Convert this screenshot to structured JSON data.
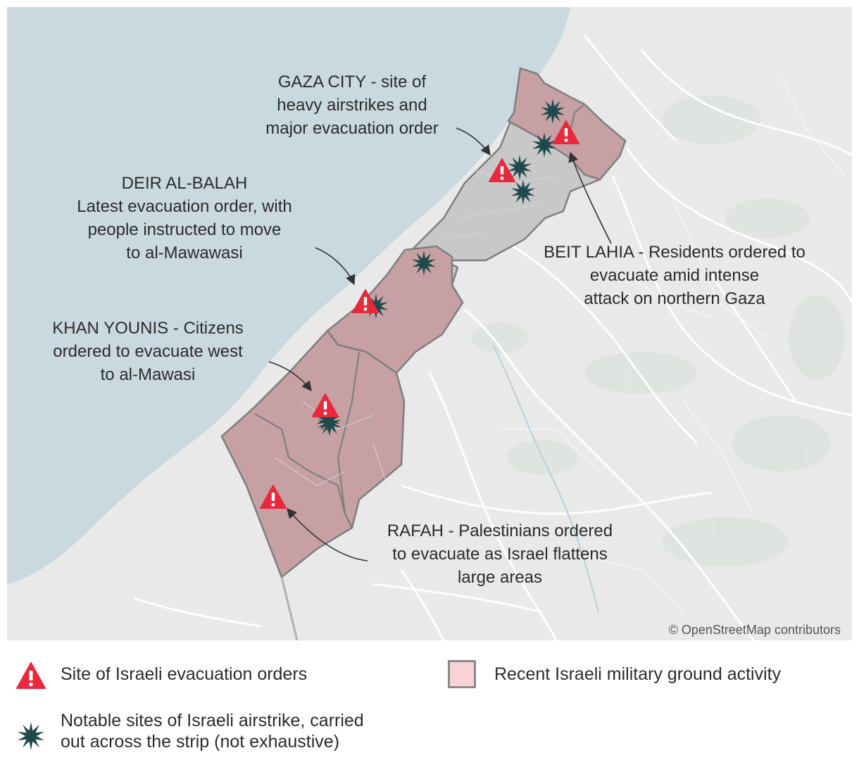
{
  "map": {
    "attribution": "© OpenStreetMap contributors",
    "colors": {
      "sea": "#c9d9df",
      "land": "#e9e9e9",
      "strip": "#c8c8c8",
      "ground_activity": "#c7a0a4",
      "border": "#7f7f7f",
      "warning": "#e8283c",
      "airstrike": "#1f4a4b"
    },
    "annotations": [
      {
        "id": "gaza-city",
        "lines": [
          "GAZA CITY - site of",
          "heavy airstrikes and",
          "major evacuation order"
        ]
      },
      {
        "id": "deir-al-balah",
        "lines": [
          "DEIR AL-BALAH",
          "Latest evacuation order, with",
          "people instructed to move",
          "to al-Mawawasi"
        ]
      },
      {
        "id": "khan-younis",
        "lines": [
          "KHAN YOUNIS - Citizens",
          "ordered to evacuate west",
          "to al-Mawasi"
        ]
      },
      {
        "id": "beit-lahia",
        "lines": [
          "BEIT LAHIA - Residents ordered to",
          "evacuate amid intense",
          "attack on northern Gaza"
        ]
      },
      {
        "id": "rafah",
        "lines": [
          "RAFAH - Palestinians ordered",
          "to evacuate as Israel flattens",
          "large areas"
        ]
      }
    ],
    "evacuation_sites": [
      "Beit Lahia",
      "Gaza City",
      "Deir al-Balah",
      "Khan Younis",
      "Rafah"
    ],
    "airstrike_count": 8
  },
  "legend": {
    "evacuation_label": "Site of Israeli evacuation orders",
    "airstrike_label_lines": [
      "Notable sites of Israeli airstrike, carried",
      "out across the strip (not exhaustive)"
    ],
    "ground_activity_label": "Recent Israeli military ground activity",
    "evacuation_icon": "warning-triangle-icon",
    "airstrike_icon": "starburst-icon"
  }
}
